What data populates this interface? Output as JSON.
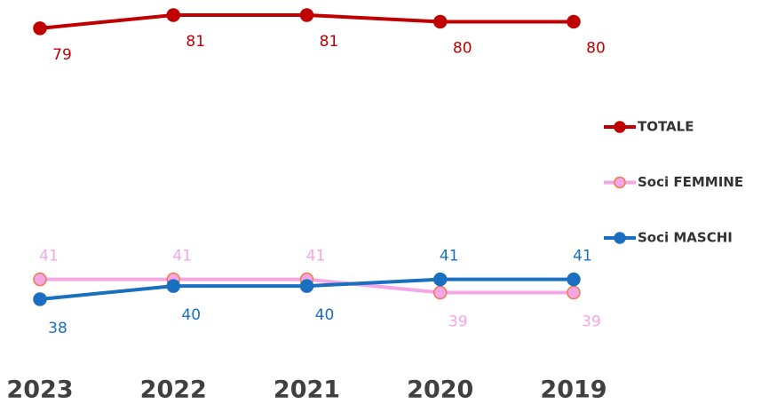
{
  "chart_data": {
    "type": "line",
    "categories": [
      "2023",
      "2022",
      "2021",
      "2020",
      "2019"
    ],
    "series": [
      {
        "name": "TOTALE",
        "color": "#c00000",
        "marker_edge": "#c00000",
        "values": [
          79,
          81,
          81,
          80,
          80
        ]
      },
      {
        "name": "Soci FEMMINE",
        "color": "#f4a6e6",
        "marker_edge": "#f07a4a",
        "values": [
          41,
          41,
          41,
          39,
          39
        ]
      },
      {
        "name": "Soci MASCHI",
        "color": "#1a6fc0",
        "marker_edge": "#1a6fc0",
        "values": [
          38,
          40,
          40,
          41,
          41
        ]
      }
    ],
    "legend": "right"
  }
}
